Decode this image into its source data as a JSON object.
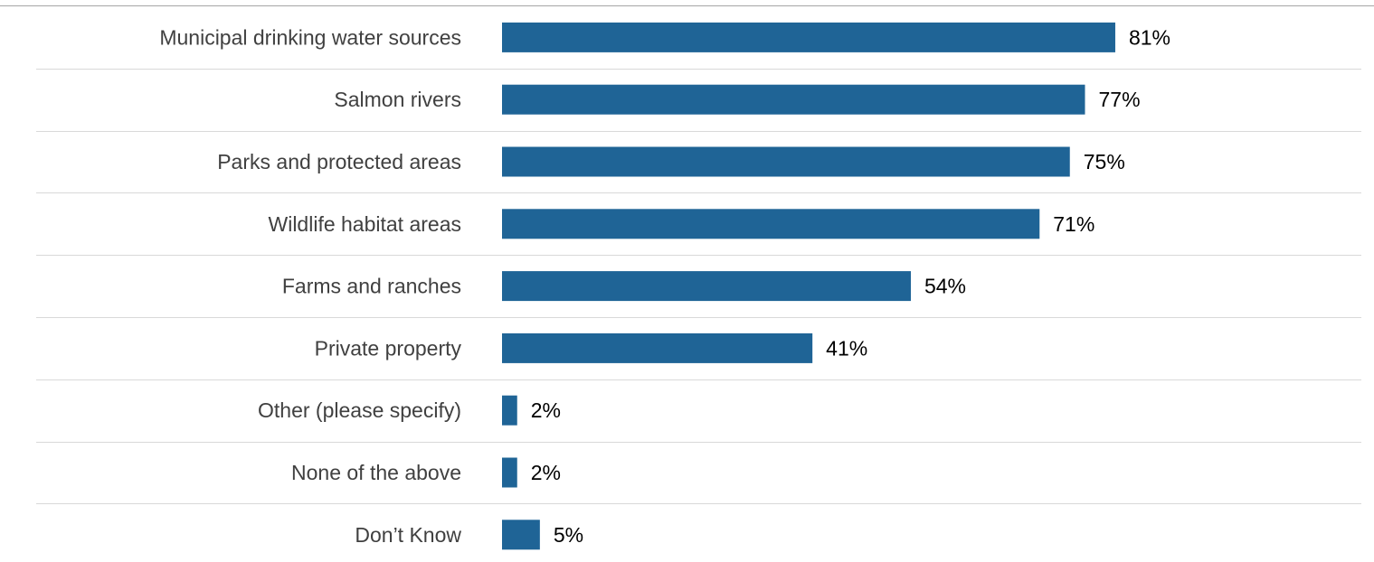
{
  "chart_data": {
    "type": "bar",
    "orientation": "horizontal",
    "categories": [
      "Municipal drinking water sources",
      "Salmon rivers",
      "Parks and protected areas",
      "Wildlife habitat areas",
      "Farms and ranches",
      "Private property",
      "Other (please specify)",
      "None of the above",
      "Don’t Know"
    ],
    "values": [
      81,
      77,
      75,
      71,
      54,
      41,
      2,
      2,
      5
    ],
    "value_labels": [
      "81%",
      "77%",
      "75%",
      "71%",
      "54%",
      "41%",
      "2%",
      "2%",
      "5%"
    ],
    "unit": "%",
    "xlim": [
      0,
      100
    ],
    "grid": "horizontal separators between rows",
    "legend": "none",
    "bar_color": "#1f6496"
  }
}
